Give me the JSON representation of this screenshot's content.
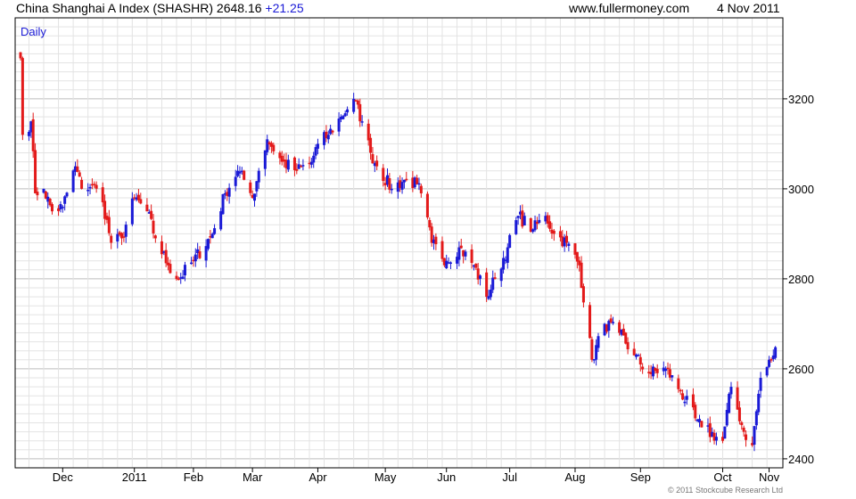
{
  "header": {
    "index_name": "China Shanghai A Index (SHASHR)",
    "last_value": "2648.16",
    "change": "+21.25",
    "website": "www.fullermoney.com",
    "date": "4 Nov 2011"
  },
  "copyright": "© 2011 Stockcube Research Ltd",
  "colors": {
    "up": "#1a1ad6",
    "down": "#e31a1a",
    "grid": "#e3e3e3",
    "grid_major": "#bdbdbd",
    "frame": "#000000"
  },
  "chart_data": {
    "type": "candlestick",
    "period_label": "Daily",
    "x_tick_labels": [
      "Dec",
      "2011",
      "Feb",
      "Mar",
      "Apr",
      "May",
      "Jun",
      "Jul",
      "Aug",
      "Sep",
      "Oct",
      "Nov"
    ],
    "x_tick_dates": [
      "2010-12-01",
      "2011-01-04",
      "2011-02-01",
      "2011-03-01",
      "2011-04-01",
      "2011-05-03",
      "2011-06-01",
      "2011-07-01",
      "2011-08-01",
      "2011-09-01",
      "2011-10-10",
      "2011-11-01"
    ],
    "y_tick_labels": [
      "2400",
      "2600",
      "2800",
      "3000",
      "3200"
    ],
    "ylim": [
      2380,
      3380
    ],
    "xlim": [
      "2010-11-11",
      "2011-11-05"
    ],
    "grid": true,
    "close_path": [
      [
        "2010-11-11",
        3290
      ],
      [
        "2010-11-12",
        3120
      ],
      [
        "2010-11-16",
        3150
      ],
      [
        "2010-11-18",
        2990
      ],
      [
        "2010-11-22",
        3000
      ],
      [
        "2010-11-26",
        2950
      ],
      [
        "2010-12-01",
        2960
      ],
      [
        "2010-12-07",
        3050
      ],
      [
        "2010-12-10",
        3000
      ],
      [
        "2010-12-15",
        3010
      ],
      [
        "2010-12-20",
        2970
      ],
      [
        "2010-12-24",
        2880
      ],
      [
        "2010-12-29",
        2890
      ],
      [
        "2011-01-04",
        2980
      ],
      [
        "2011-01-10",
        2950
      ],
      [
        "2011-01-14",
        2890
      ],
      [
        "2011-01-20",
        2830
      ],
      [
        "2011-01-25",
        2800
      ],
      [
        "2011-02-01",
        2840
      ],
      [
        "2011-02-10",
        2900
      ],
      [
        "2011-02-16",
        2990
      ],
      [
        "2011-02-22",
        3040
      ],
      [
        "2011-02-25",
        3020
      ],
      [
        "2011-03-01",
        2980
      ],
      [
        "2011-03-04",
        3040
      ],
      [
        "2011-03-08",
        3110
      ],
      [
        "2011-03-15",
        3060
      ],
      [
        "2011-03-22",
        3040
      ],
      [
        "2011-03-29",
        3060
      ],
      [
        "2011-04-01",
        3100
      ],
      [
        "2011-04-06",
        3120
      ],
      [
        "2011-04-12",
        3160
      ],
      [
        "2011-04-18",
        3200
      ],
      [
        "2011-04-22",
        3150
      ],
      [
        "2011-04-26",
        3080
      ],
      [
        "2011-04-29",
        3050
      ],
      [
        "2011-05-06",
        3000
      ],
      [
        "2011-05-12",
        3020
      ],
      [
        "2011-05-18",
        3010
      ],
      [
        "2011-05-20",
        2990
      ],
      [
        "2011-05-25",
        2880
      ],
      [
        "2011-06-01",
        2840
      ],
      [
        "2011-06-07",
        2870
      ],
      [
        "2011-06-14",
        2830
      ],
      [
        "2011-06-20",
        2760
      ],
      [
        "2011-06-24",
        2800
      ],
      [
        "2011-06-30",
        2870
      ],
      [
        "2011-07-05",
        2940
      ],
      [
        "2011-07-12",
        2910
      ],
      [
        "2011-07-18",
        2940
      ],
      [
        "2011-07-22",
        2900
      ],
      [
        "2011-07-28",
        2880
      ],
      [
        "2011-08-03",
        2830
      ],
      [
        "2011-08-09",
        2620
      ],
      [
        "2011-08-15",
        2700
      ],
      [
        "2011-08-22",
        2680
      ],
      [
        "2011-08-29",
        2630
      ],
      [
        "2011-09-05",
        2590
      ],
      [
        "2011-09-13",
        2600
      ],
      [
        "2011-09-20",
        2550
      ],
      [
        "2011-09-27",
        2490
      ],
      [
        "2011-09-30",
        2470
      ],
      [
        "2011-10-10",
        2440
      ],
      [
        "2011-10-14",
        2560
      ],
      [
        "2011-10-20",
        2460
      ],
      [
        "2011-10-24",
        2430
      ],
      [
        "2011-10-28",
        2580
      ],
      [
        "2011-11-02",
        2620
      ],
      [
        "2011-11-04",
        2648
      ]
    ]
  }
}
